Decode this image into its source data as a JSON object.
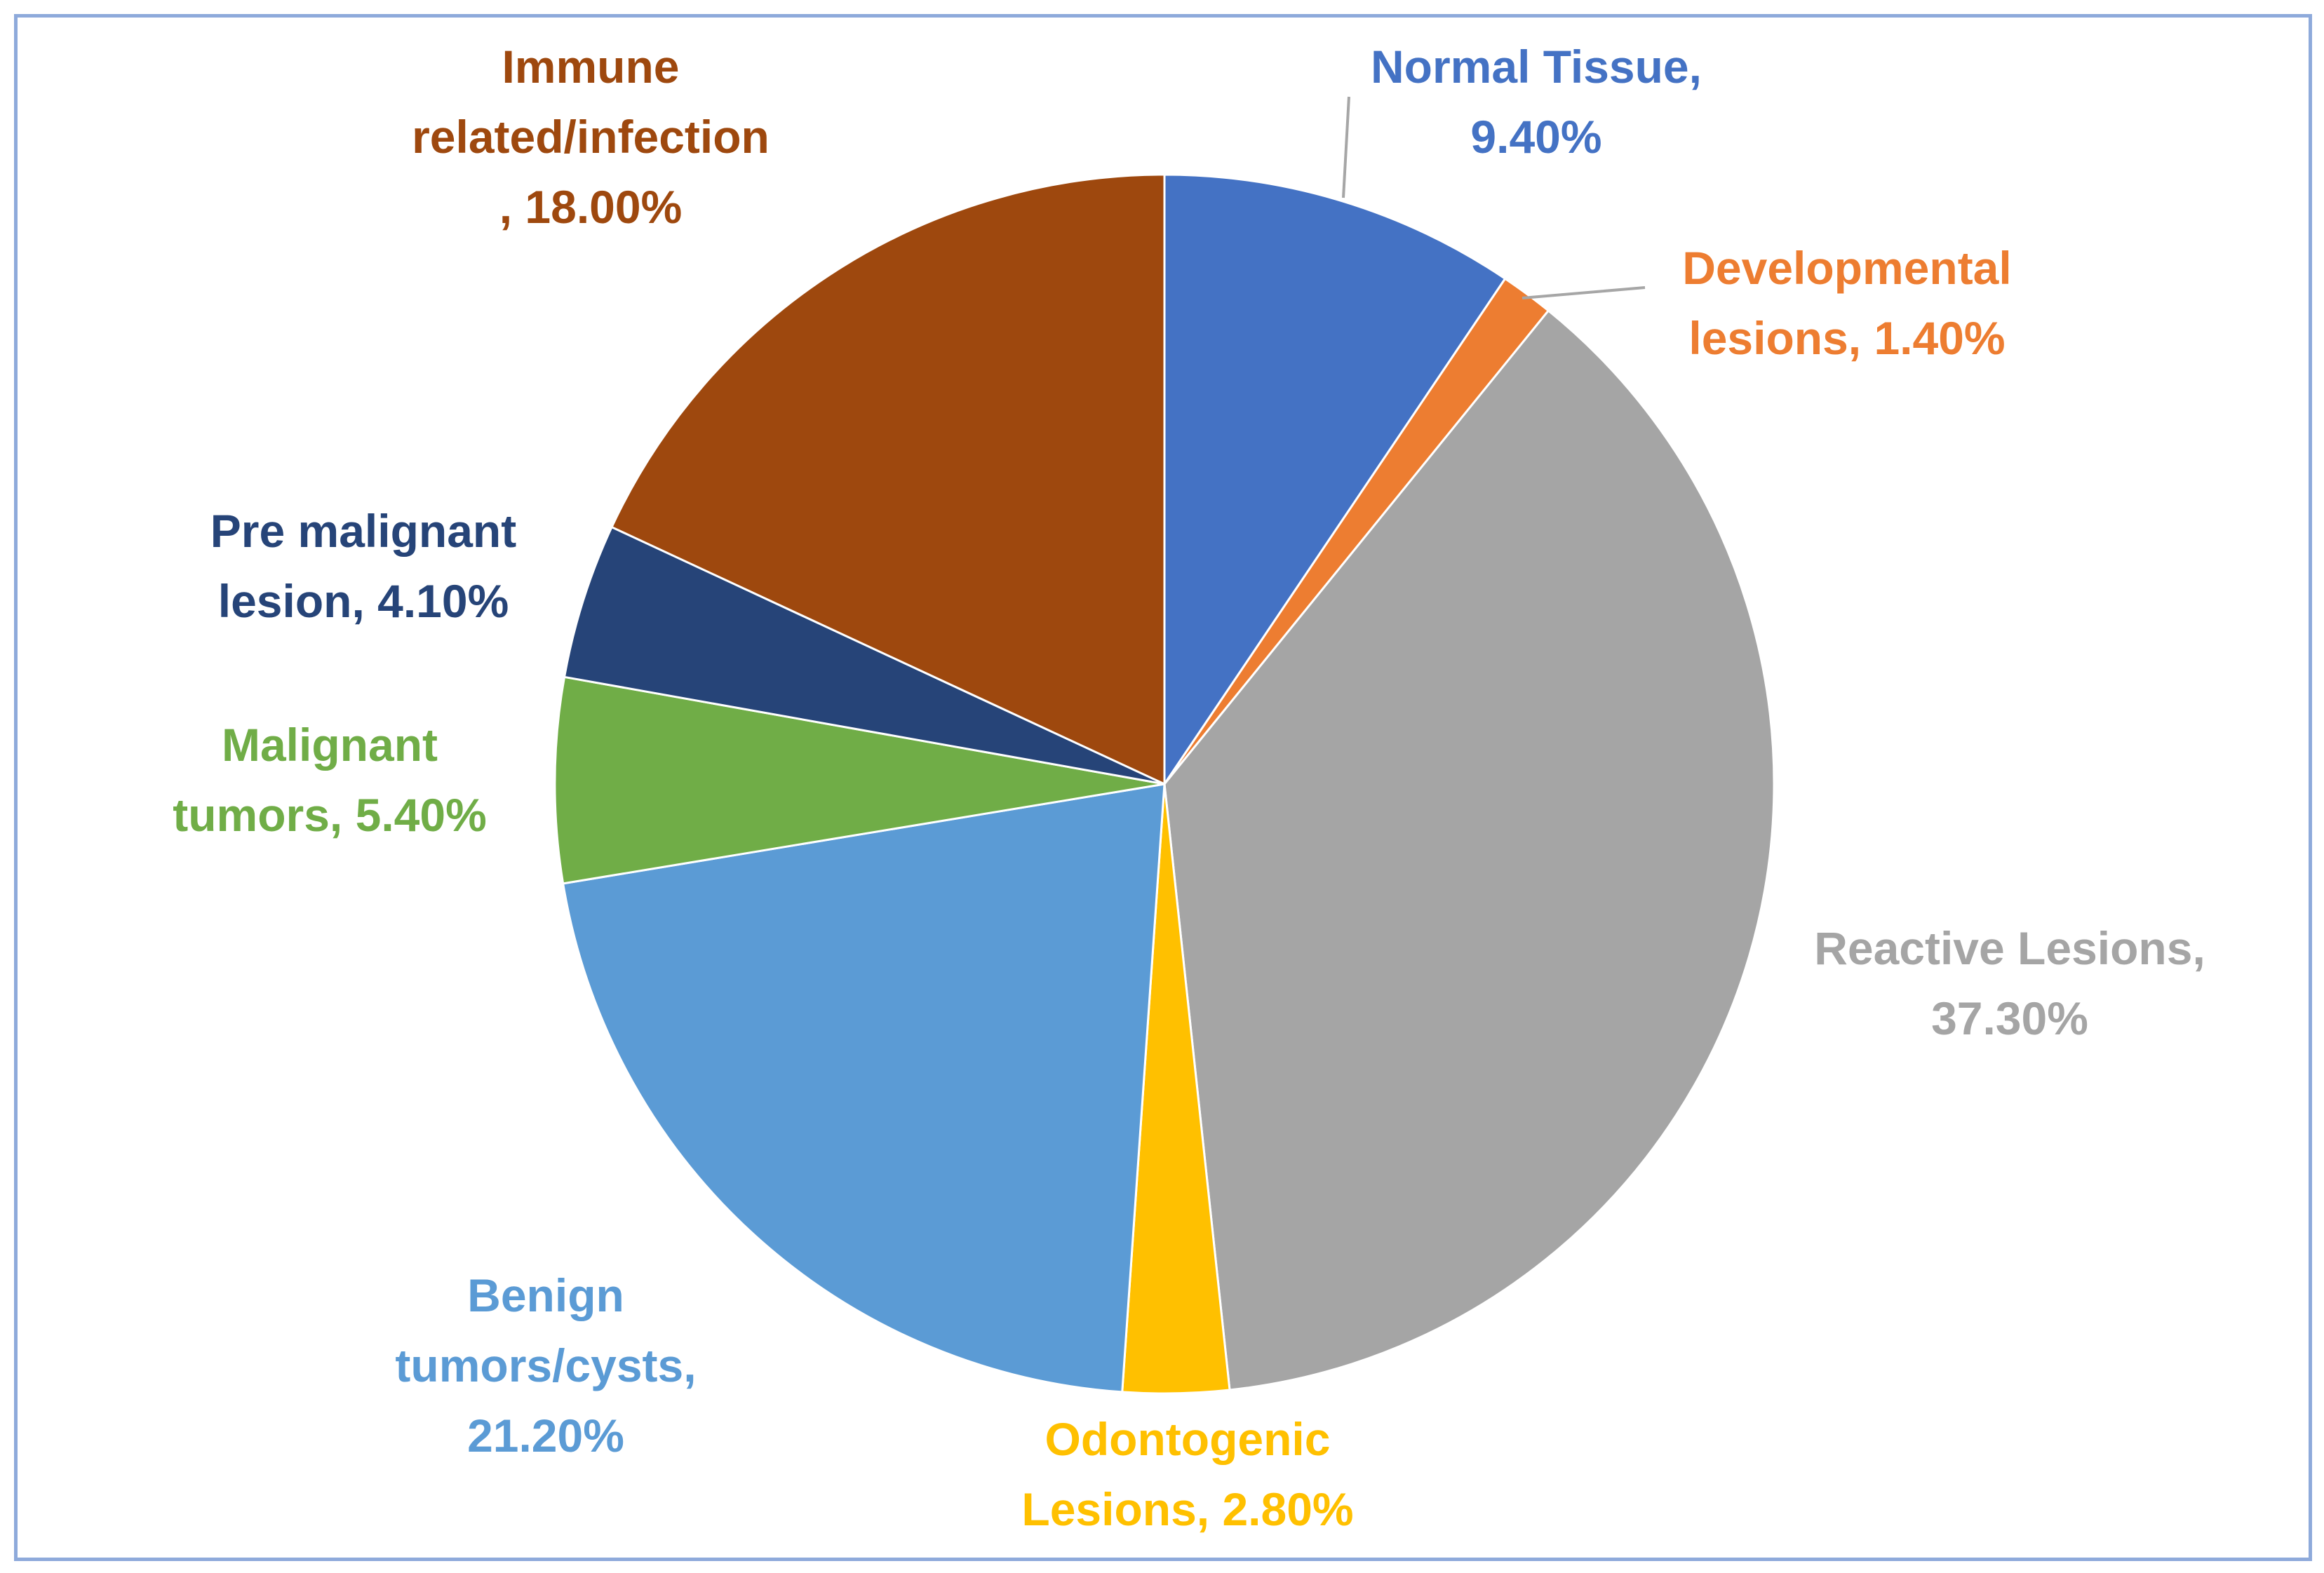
{
  "chart_data": {
    "type": "pie",
    "title": "",
    "slices": [
      {
        "label_lines": [
          "Normal Tissue,",
          "9.40%"
        ],
        "name": "Normal Tissue",
        "value": 9.4,
        "color": "#4472c4"
      },
      {
        "label_lines": [
          "Developmental",
          "lesions, 1.40%"
        ],
        "name": "Developmental lesions",
        "value": 1.4,
        "color": "#ed7d31"
      },
      {
        "label_lines": [
          "Reactive Lesions,",
          "37.30%"
        ],
        "name": "Reactive Lesions",
        "value": 37.3,
        "color": "#a5a5a5"
      },
      {
        "label_lines": [
          "Odontogenic",
          "Lesions, 2.80%"
        ],
        "name": "Odontogenic Lesions",
        "value": 2.8,
        "color": "#ffc000"
      },
      {
        "label_lines": [
          "Benign",
          "tumors/cysts,",
          "21.20%"
        ],
        "name": "Benign tumors/cysts",
        "value": 21.2,
        "color": "#5b9bd5"
      },
      {
        "label_lines": [
          "Malignant",
          "tumors, 5.40%"
        ],
        "name": "Malignant tumors",
        "value": 5.4,
        "color": "#70ad47"
      },
      {
        "label_lines": [
          "Pre malignant",
          "lesion, 4.10%"
        ],
        "name": "Pre malignant lesion",
        "value": 4.1,
        "color": "#264478"
      },
      {
        "label_lines": [
          "Immune",
          "related/infection",
          ", 18.00%"
        ],
        "name": "Immune related/infection",
        "value": 18.0,
        "color": "#9e480e"
      }
    ],
    "label_colors": [
      "#4472c4",
      "#ed7d31",
      "#a5a5a5",
      "#ffc000",
      "#5b9bd5",
      "#70ad47",
      "#264478",
      "#9e480e"
    ],
    "leader_line_color": "#a6a6a6"
  }
}
